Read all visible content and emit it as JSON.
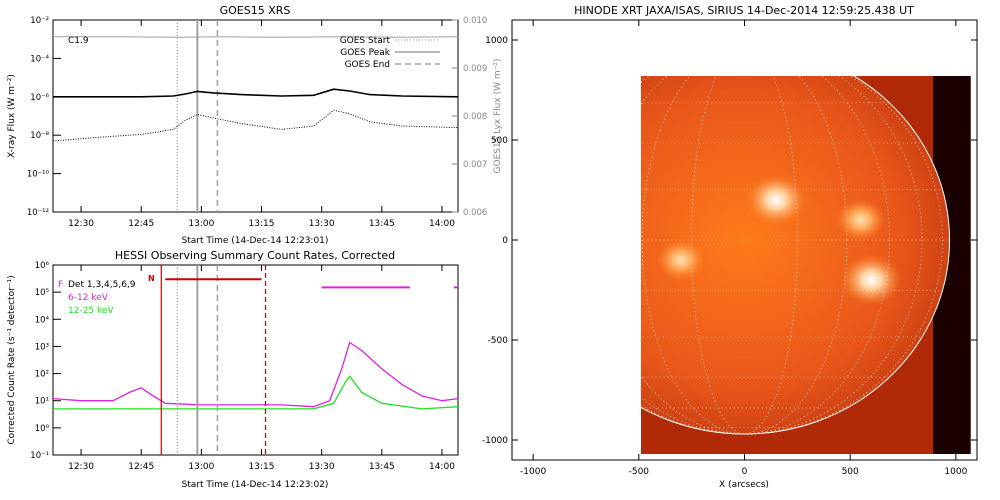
{
  "goes_panel": {
    "title": "GOES15 XRS",
    "flare_class": "C1.9",
    "ylabel": "X-ray Flux (W m⁻²)",
    "ylabel_right": "GOES15 Lyx Flux (W m⁻²)",
    "xlabel": "Start Time (14-Dec-14 12:23:01)",
    "legend": [
      {
        "label": "GOES Start",
        "style": "dotted",
        "color": "#a0a0a0"
      },
      {
        "label": "GOES Peak",
        "style": "solid",
        "color": "#a0a0a0"
      },
      {
        "label": "GOES End",
        "style": "dashed",
        "color": "#a0a0a0"
      }
    ]
  },
  "hessi_panel": {
    "title": "HESSI Observing Summary Count Rates, Corrected",
    "ylabel": "Corrected Count Rate (s⁻¹ detector⁻¹)",
    "xlabel": "Start Time (14-Dec-14 12:23:02)",
    "legend": [
      {
        "label": "Det 1,3,4,5,6,9",
        "color": "#000000"
      },
      {
        "label": "6-12 keV",
        "color": "#e020e0"
      },
      {
        "label": "12-25 keV",
        "color": "#20e020"
      }
    ],
    "flag_labels": [
      "F",
      "N"
    ]
  },
  "image_panel": {
    "title": "HINODE XRT JAXA/ISAS, SIRIUS 14-Dec-2014 12:59:25.438 UT",
    "xlabel": "X (arcsecs)"
  },
  "chart_data": [
    {
      "type": "line",
      "title": "GOES15 XRS",
      "xlabel": "Start Time (14-Dec-14 12:23:01)",
      "ylabel": "X-ray Flux (W m⁻²)",
      "ylabel_right": "GOES15 Lyx Flux (W m⁻²)",
      "x_ticks": [
        "12:30",
        "12:45",
        "13:00",
        "13:15",
        "13:30",
        "13:45",
        "14:00"
      ],
      "xlim": [
        "12:23",
        "14:04"
      ],
      "ylim": [
        1e-12,
        0.01
      ],
      "yscale": "log",
      "y_ticks": [
        "10⁻¹²",
        "10⁻¹⁰",
        "10⁻⁸",
        "10⁻⁶",
        "10⁻⁴",
        "10⁻²"
      ],
      "y_right_ticks": [
        "0.006",
        "0.007",
        "0.008",
        "0.009",
        "0.010"
      ],
      "ylim_right": [
        0.006,
        0.01
      ],
      "series": [
        {
          "name": "Lyx",
          "color": "#a0a0a0",
          "axis": "right",
          "x": [
            "12:23",
            "12:40",
            "12:55",
            "13:05",
            "13:20",
            "13:35",
            "13:50",
            "14:04"
          ],
          "y": [
            0.00965,
            0.00965,
            0.00964,
            0.00965,
            0.00964,
            0.00965,
            0.00964,
            0.00965
          ]
        },
        {
          "color": "#000000",
          "style": "solid",
          "x": [
            "12:23",
            "12:35",
            "12:45",
            "12:53",
            "12:56",
            "12:59",
            "13:03",
            "13:10",
            "13:20",
            "13:28",
            "13:33",
            "13:37",
            "13:42",
            "13:50",
            "14:04"
          ],
          "y": [
            1e-06,
            1e-06,
            1e-06,
            1.1e-06,
            1.4e-06,
            1.9e-06,
            1.6e-06,
            1.3e-06,
            1.1e-06,
            1.2e-06,
            2.5e-06,
            2e-06,
            1.3e-06,
            1.1e-06,
            1e-06
          ]
        },
        {
          "color": "#000000",
          "style": "dotted",
          "x": [
            "12:23",
            "12:35",
            "12:45",
            "12:53",
            "12:56",
            "12:59",
            "13:03",
            "13:10",
            "13:20",
            "13:28",
            "13:33",
            "13:37",
            "13:42",
            "13:50",
            "14:04"
          ],
          "y": [
            5e-09,
            8e-09,
            1.1e-08,
            2e-08,
            6e-08,
            1.2e-07,
            8e-08,
            4e-08,
            2e-08,
            3e-08,
            2e-07,
            1.3e-07,
            5e-08,
            3e-08,
            2.5e-08
          ]
        }
      ],
      "markers": {
        "start": "12:54",
        "peak": "12:59",
        "end": "13:04"
      }
    },
    {
      "type": "line",
      "title": "HESSI Observing Summary Count Rates, Corrected",
      "xlabel": "Start Time (14-Dec-14 12:23:02)",
      "ylabel": "Corrected Count Rate (s⁻¹ detector⁻¹)",
      "x_ticks": [
        "12:30",
        "12:45",
        "13:00",
        "13:15",
        "13:30",
        "13:45",
        "14:00"
      ],
      "xlim": [
        "12:23",
        "14:04"
      ],
      "ylim": [
        0.1,
        1000000.0
      ],
      "yscale": "log",
      "y_ticks": [
        "10⁻¹",
        "10⁰",
        "10¹",
        "10²",
        "10³",
        "10⁴",
        "10⁵",
        "10⁶"
      ],
      "series": [
        {
          "name": "6-12 keV",
          "color": "#e020e0",
          "x": [
            "12:23",
            "12:30",
            "12:38",
            "12:42",
            "12:45",
            "12:48",
            "12:51",
            "13:00",
            "13:10",
            "13:20",
            "13:28",
            "13:32",
            "13:35",
            "13:37",
            "13:40",
            "13:45",
            "13:50",
            "13:55",
            "14:00",
            "14:04"
          ],
          "y": [
            12,
            10,
            10,
            20,
            30,
            15,
            8,
            7,
            7,
            7,
            6,
            10,
            150,
            1400,
            700,
            150,
            40,
            15,
            10,
            12
          ]
        },
        {
          "name": "12-25 keV",
          "color": "#20e020",
          "x": [
            "12:23",
            "12:30",
            "12:45",
            "12:51",
            "13:00",
            "13:10",
            "13:20",
            "13:28",
            "13:33",
            "13:36",
            "13:37",
            "13:40",
            "13:45",
            "13:55",
            "14:04"
          ],
          "y": [
            5,
            5,
            5,
            5,
            5,
            5,
            5,
            5,
            8,
            50,
            80,
            20,
            8,
            5,
            6
          ]
        }
      ],
      "markers": {
        "start": "12:54",
        "peak": "12:59",
        "end": "13:04"
      },
      "attenuator_interval": [
        "12:50",
        "13:16"
      ],
      "flag_bars": [
        {
          "label": "N",
          "from": "12:51",
          "to": "13:15",
          "level": 300000.0,
          "color": "#cc0000"
        },
        {
          "from": "13:30",
          "to": "13:52",
          "level": 150000.0,
          "color": "#e020e0"
        },
        {
          "from": "14:03",
          "to": "14:04",
          "level": 150000.0,
          "color": "#e020e0"
        }
      ]
    },
    {
      "type": "heatmap",
      "title": "HINODE XRT JAXA/ISAS, SIRIUS 14-Dec-2014 12:59:25.438 UT",
      "xlabel": "X (arcsecs)",
      "xlim": [
        -1100,
        1100
      ],
      "ylim": [
        -1100,
        1100
      ],
      "x_ticks": [
        -1000,
        -500,
        0,
        500,
        1000
      ],
      "y_ticks": [
        -1000,
        -500,
        0,
        500,
        1000
      ],
      "image_extent_x": [
        -490,
        1070
      ],
      "image_extent_y": [
        -1070,
        820
      ],
      "limb_radius": 970,
      "bright_regions": [
        {
          "x": 150,
          "y": 200,
          "level": "high"
        },
        {
          "x": 550,
          "y": 100,
          "level": "medium"
        },
        {
          "x": 600,
          "y": -200,
          "level": "high"
        },
        {
          "x": -300,
          "y": -100,
          "level": "medium"
        }
      ],
      "colormap": [
        "#8b1a00",
        "#cc3300",
        "#ff7a1a",
        "#ffd2a0",
        "#ffffff"
      ],
      "grid": true
    }
  ]
}
